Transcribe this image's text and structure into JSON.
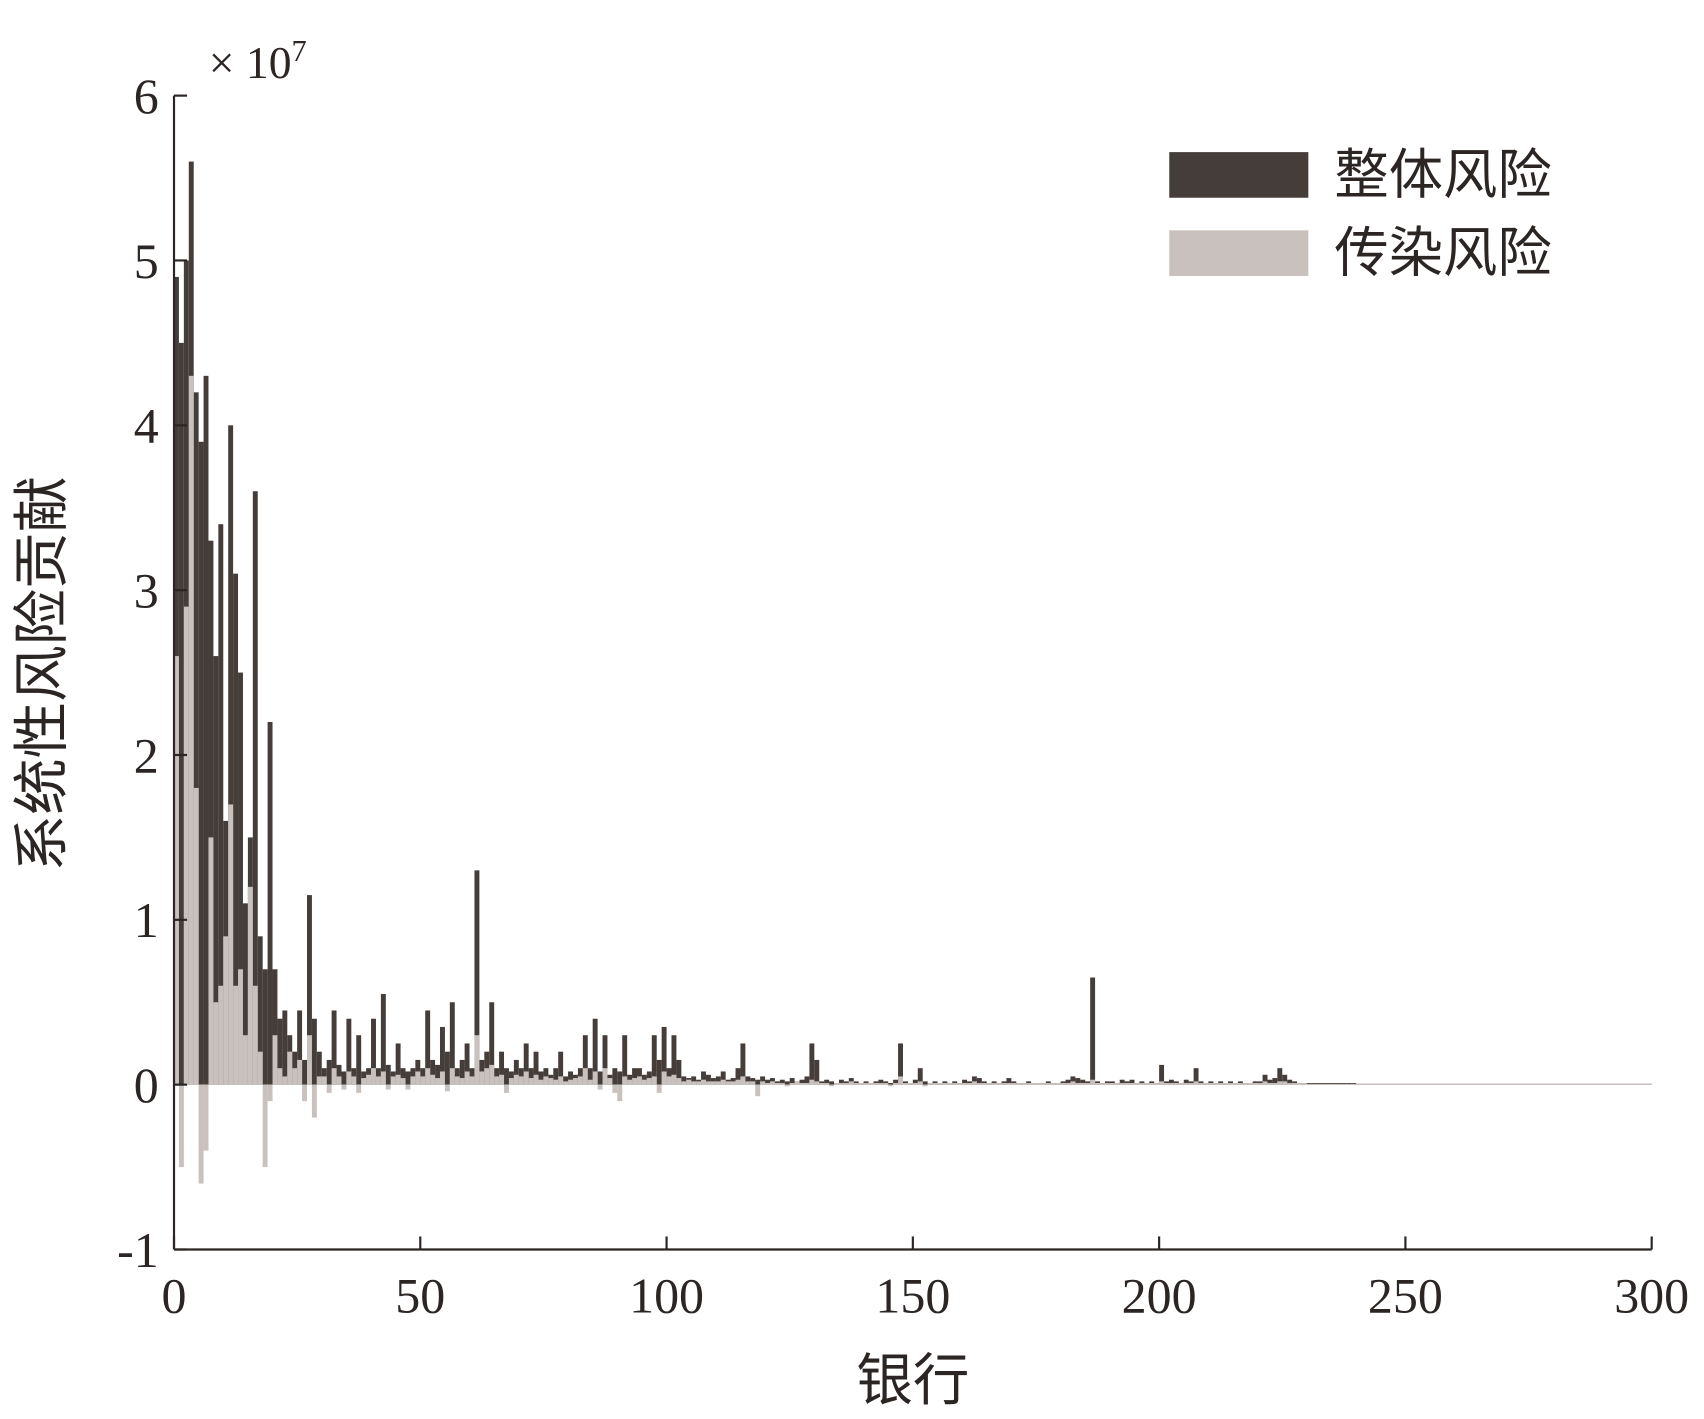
{
  "chart_data": {
    "type": "bar",
    "y_label": "系统性风险贡献",
    "x_label": "银行",
    "y_multiplier": {
      "base": "× 10",
      "exponent": "7"
    },
    "xlim": [
      0,
      300
    ],
    "xticks": [
      0,
      50,
      100,
      150,
      200,
      250,
      300
    ],
    "ylim": [
      -1,
      6
    ],
    "yticks": [
      -1,
      0,
      1,
      2,
      3,
      4,
      5,
      6
    ],
    "legend": "upper right",
    "x": [
      1,
      2,
      3,
      4,
      5,
      6,
      7,
      8,
      9,
      10,
      11,
      12,
      13,
      14,
      15,
      16,
      17,
      18,
      19,
      20,
      21,
      22,
      23,
      24,
      25,
      26,
      27,
      28,
      29,
      30,
      31,
      32,
      33,
      34,
      35,
      36,
      37,
      38,
      39,
      40,
      41,
      42,
      43,
      44,
      45,
      46,
      47,
      48,
      49,
      50,
      51,
      52,
      53,
      54,
      55,
      56,
      57,
      58,
      59,
      60,
      61,
      62,
      63,
      64,
      65,
      66,
      67,
      68,
      69,
      70,
      71,
      72,
      73,
      74,
      75,
      76,
      77,
      78,
      79,
      80,
      81,
      82,
      83,
      84,
      85,
      86,
      87,
      88,
      89,
      90,
      91,
      92,
      93,
      94,
      95,
      96,
      97,
      98,
      99,
      100,
      101,
      102,
      103,
      104,
      105,
      106,
      107,
      108,
      109,
      110,
      111,
      112,
      113,
      114,
      115,
      116,
      117,
      118,
      119,
      120,
      121,
      122,
      123,
      124,
      125,
      126,
      127,
      128,
      129,
      130,
      131,
      132,
      133,
      134,
      135,
      136,
      137,
      138,
      139,
      140,
      141,
      142,
      143,
      144,
      145,
      146,
      147,
      148,
      149,
      150,
      151,
      152,
      153,
      154,
      155,
      156,
      157,
      158,
      159,
      160,
      161,
      162,
      163,
      164,
      165,
      166,
      167,
      168,
      169,
      170,
      171,
      172,
      173,
      174,
      175,
      176,
      177,
      178,
      179,
      180,
      181,
      182,
      183,
      184,
      185,
      186,
      187,
      188,
      189,
      190,
      191,
      192,
      193,
      194,
      195,
      196,
      197,
      198,
      199,
      200,
      201,
      202,
      203,
      204,
      205,
      206,
      207,
      208,
      209,
      210,
      211,
      212,
      213,
      214,
      215,
      216,
      217,
      218,
      219,
      220,
      221,
      222,
      223,
      224,
      225,
      226,
      227,
      228,
      229,
      230,
      231,
      232,
      233,
      234,
      235,
      236,
      237,
      238,
      239,
      240,
      241,
      242,
      243,
      244,
      245,
      246,
      247,
      248,
      249,
      250,
      251,
      252,
      253,
      254,
      255,
      256,
      257,
      258,
      259,
      260,
      261,
      262,
      263,
      264,
      265,
      266,
      267,
      268,
      269,
      270,
      271,
      272,
      273,
      274,
      275,
      276,
      277,
      278,
      279,
      280,
      281,
      282,
      283,
      284,
      285,
      286,
      287,
      288,
      289,
      290,
      291,
      292,
      293,
      294,
      295,
      296,
      297,
      298,
      299,
      300
    ],
    "series": [
      {
        "name": "整体风险",
        "color": "#453d3a",
        "values": [
          4.9,
          4.5,
          5.0,
          5.6,
          4.2,
          3.9,
          4.3,
          3.3,
          2.6,
          3.4,
          1.6,
          4.0,
          3.1,
          2.5,
          1.1,
          1.5,
          3.6,
          0.9,
          0.7,
          2.2,
          0.7,
          0.4,
          0.45,
          0.3,
          0.2,
          0.45,
          0.15,
          1.15,
          0.4,
          0.2,
          0.1,
          0.15,
          0.45,
          0.12,
          0.08,
          0.4,
          0.1,
          0.3,
          0.08,
          0.1,
          0.4,
          0.1,
          0.55,
          0.12,
          0.08,
          0.25,
          0.1,
          0.08,
          0.1,
          0.15,
          0.1,
          0.45,
          0.15,
          0.12,
          0.35,
          0.2,
          0.5,
          0.1,
          0.15,
          0.25,
          0.1,
          1.3,
          0.15,
          0.2,
          0.5,
          0.1,
          0.2,
          0.1,
          0.08,
          0.15,
          0.1,
          0.25,
          0.1,
          0.2,
          0.08,
          0.1,
          0.06,
          0.1,
          0.2,
          0.05,
          0.08,
          0.06,
          0.1,
          0.3,
          0.1,
          0.4,
          0.08,
          0.3,
          0.06,
          0.1,
          0.08,
          0.3,
          0.06,
          0.1,
          0.1,
          0.06,
          0.08,
          0.3,
          0.15,
          0.35,
          0.1,
          0.3,
          0.15,
          0.05,
          0.04,
          0.05,
          0.03,
          0.08,
          0.06,
          0.04,
          0.05,
          0.08,
          0.03,
          0.04,
          0.1,
          0.25,
          0.05,
          0.04,
          0.03,
          0.05,
          0.03,
          0.04,
          0.02,
          0.03,
          0.02,
          0.04,
          0.02,
          0.03,
          0.05,
          0.25,
          0.15,
          0.02,
          0.03,
          0.02,
          0.01,
          0.03,
          0.02,
          0.04,
          0.02,
          0.01,
          0.02,
          0.01,
          0.02,
          0.03,
          0.02,
          0.01,
          0.03,
          0.25,
          0.02,
          0.01,
          0.03,
          0.1,
          0.02,
          0.01,
          0.02,
          0.01,
          0.02,
          0.01,
          0.02,
          0.01,
          0.03,
          0.02,
          0.05,
          0.04,
          0.02,
          0.01,
          0.02,
          0.01,
          0.02,
          0.04,
          0.02,
          0.01,
          0.01,
          0.02,
          0.01,
          0.01,
          0.01,
          0.02,
          0.01,
          0.01,
          0.02,
          0.03,
          0.05,
          0.04,
          0.03,
          0.02,
          0.65,
          0.02,
          0.01,
          0.02,
          0.02,
          0.01,
          0.03,
          0.02,
          0.03,
          0.01,
          0.02,
          0.01,
          0.02,
          0.01,
          0.12,
          0.02,
          0.03,
          0.02,
          0.01,
          0.03,
          0.02,
          0.1,
          0.02,
          0.01,
          0.02,
          0.01,
          0.02,
          0.01,
          0.02,
          0.01,
          0.02,
          0.01,
          0.01,
          0.02,
          0.02,
          0.06,
          0.03,
          0.04,
          0.1,
          0.06,
          0.03,
          0.02,
          0.01,
          0.01,
          0.01,
          0.01,
          0.01,
          0.01,
          0.01,
          0.01,
          0.01,
          0.01,
          0.01,
          0.01,
          0.005,
          0.005,
          0.005,
          0.005,
          0.005,
          0.005,
          0.005,
          0.005,
          0.005,
          0.005,
          0.005,
          0.005,
          0.005,
          0.005,
          0.005,
          0.005,
          0.005,
          0.005,
          0.005,
          0.005,
          0.005,
          0.005,
          0.005,
          0.005,
          0.005,
          0.005,
          0.005,
          0.005,
          0.005,
          0.005,
          0.005,
          0.005,
          0.005,
          0.005,
          0.005,
          0.005,
          0.005,
          0.005,
          0.005,
          0.005,
          0.005,
          0.005,
          0.005,
          0.005,
          0.005,
          0.005,
          0.005,
          0.005,
          0.005,
          0.005,
          0.005,
          0.005,
          0.005,
          0.005,
          0.005,
          0.005,
          0.005,
          0.005,
          0.005,
          0.005
        ]
      },
      {
        "name": "传染风险",
        "color": "#c9c1be",
        "values": [
          2.6,
          -0.5,
          2.9,
          4.3,
          1.8,
          -0.6,
          -0.4,
          1.5,
          0.5,
          0.6,
          0.9,
          1.7,
          0.6,
          0.7,
          0.3,
          1.2,
          0.6,
          0.2,
          -0.5,
          -0.1,
          0.3,
          0.1,
          0.05,
          0.2,
          0.1,
          0.15,
          -0.1,
          0.3,
          -0.2,
          0.05,
          0.05,
          -0.05,
          0.1,
          0.05,
          -0.03,
          0.08,
          0.05,
          -0.05,
          0.04,
          0.06,
          0.1,
          0.05,
          0.08,
          -0.03,
          0.05,
          0.06,
          0.04,
          -0.03,
          0.05,
          0.08,
          0.05,
          0.1,
          0.06,
          0.04,
          0.08,
          -0.04,
          0.1,
          0.05,
          0.04,
          0.08,
          0.05,
          0.3,
          0.08,
          0.1,
          0.12,
          0.05,
          0.06,
          -0.05,
          0.04,
          0.06,
          0.05,
          0.08,
          0.04,
          0.06,
          0.03,
          0.05,
          0.04,
          0.03,
          0.05,
          0.02,
          0.03,
          0.04,
          0.05,
          0.1,
          0.03,
          0.08,
          -0.03,
          0.1,
          0.04,
          -0.05,
          -0.1,
          0.05,
          0.03,
          0.04,
          0.05,
          0.03,
          0.04,
          0.05,
          -0.05,
          0.08,
          0.05,
          0.06,
          0.04,
          0.02,
          0.03,
          0.02,
          0.02,
          0.03,
          0.02,
          0.02,
          0.02,
          0.03,
          0.02,
          0.02,
          0.03,
          0.05,
          0.02,
          0.02,
          -0.07,
          0.02,
          0.01,
          0.02,
          0.01,
          0.01,
          -0.01,
          0.01,
          0.02,
          0.01,
          0.01,
          0.03,
          0.02,
          0.01,
          0.01,
          -0.01,
          0.01,
          0.01,
          0.01,
          0.02,
          0.01,
          0.01,
          0.01,
          0.01,
          0.01,
          0.01,
          0.01,
          -0.01,
          0.01,
          0.05,
          0.01,
          0.01,
          0.01,
          0.02,
          -0.01,
          0.01,
          0.01,
          0.01,
          0.01,
          0.01,
          0.01,
          0.01,
          0.01,
          0.01,
          0.02,
          0.01,
          0.01,
          0.01,
          0.01,
          0.01,
          0.01,
          0.01,
          0.01,
          0.01,
          0.01,
          0.01,
          0.01,
          0.01,
          0.01,
          0.01,
          0.01,
          0.01,
          0.01,
          0.01,
          0.02,
          0.01,
          0.01,
          0.01,
          0.03,
          0.01,
          0.01,
          0.01,
          0.01,
          0.01,
          0.01,
          0.01,
          0.01,
          0.01,
          0.01,
          0.01,
          0.01,
          0.01,
          0.02,
          0.01,
          0.01,
          0.01,
          0.01,
          0.01,
          0.01,
          0.02,
          0.01,
          0.01,
          0.01,
          0.01,
          0.01,
          0.01,
          0.01,
          0.01,
          0.01,
          0.01,
          0.01,
          0.01,
          0.01,
          0.02,
          0.01,
          0.01,
          0.02,
          0.02,
          0.01,
          0.01,
          0.01,
          0.01,
          0.005,
          0.005,
          0.005,
          0.005,
          0.005,
          0.005,
          0.005,
          0.005,
          0.005,
          0.005,
          0.005,
          0.005,
          0.005,
          0.005,
          0.005,
          0.005,
          0.005,
          0.005,
          0.005,
          0.005,
          0.005,
          0.005,
          0.005,
          0.005,
          0.005,
          0.005,
          0.005,
          0.005,
          0.005,
          0.005,
          0.005,
          0.005,
          0.005,
          0.005,
          0.005,
          0.005,
          0.005,
          0.005,
          0.005,
          0.005,
          0.005,
          0.005,
          0.005,
          0.005,
          0.005,
          0.005,
          0.005,
          0.005,
          0.005,
          0.005,
          0.005,
          0.005,
          0.005,
          0.005,
          0.005,
          0.005,
          0.005,
          0.005,
          0.005,
          0.005,
          0.005,
          0.005,
          0.005,
          0.005,
          0.005,
          0.005,
          0.005,
          0.005,
          0.005,
          0.005
        ]
      }
    ]
  }
}
